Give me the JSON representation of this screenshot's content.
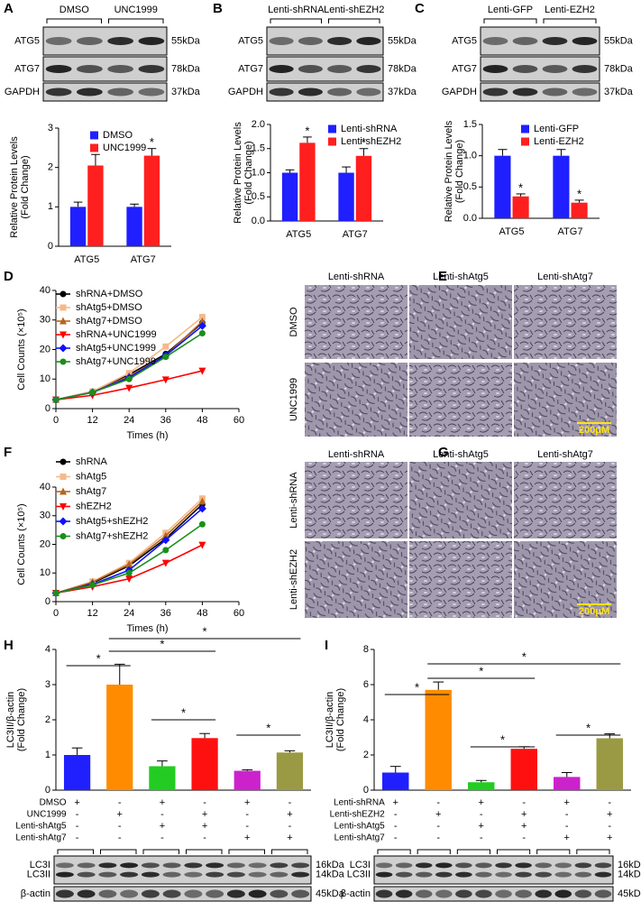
{
  "panel_labels": [
    "A",
    "B",
    "C",
    "D",
    "E",
    "F",
    "G",
    "H",
    "I"
  ],
  "blots": [
    {
      "header": [
        "DMSO",
        "UNC1999"
      ],
      "rows": [
        {
          "name": "ATG5",
          "size": "55kDa"
        },
        {
          "name": "ATG7",
          "size": "78kDa"
        },
        {
          "name": "GAPDH",
          "size": "37kDa"
        }
      ]
    },
    {
      "header": [
        "Lenti-shRNA",
        "Lenti-shEZH2"
      ],
      "rows": [
        {
          "name": "ATG5",
          "size": "55kDa"
        },
        {
          "name": "ATG7",
          "size": "78kDa"
        },
        {
          "name": "GAPDH",
          "size": "37kDa"
        }
      ]
    },
    {
      "header": [
        "Lenti-GFP",
        "Lenti-EZH2"
      ],
      "rows": [
        {
          "name": "ATG5",
          "size": "55kDa"
        },
        {
          "name": "ATG7",
          "size": "78kDa"
        },
        {
          "name": "GAPDH",
          "size": "37kDa"
        }
      ]
    },
    {
      "rows": [
        {
          "name": "LC3I",
          "size": "16kDa"
        },
        {
          "name": "LC3II",
          "size": "14kDa"
        },
        {
          "name": "β-actin",
          "size": "45kDa"
        }
      ]
    },
    {
      "rows": [
        {
          "name": "LC3I",
          "size": "16kDa"
        },
        {
          "name": "LC3II",
          "size": "14kDa"
        },
        {
          "name": "β-actin",
          "size": "45kDa"
        }
      ]
    }
  ],
  "micrographs": [
    {
      "columns": [
        "Lenti-shRNA",
        "Lenti-shAtg5",
        "Lenti-shAtg7"
      ],
      "rows": [
        "DMSO",
        "UNC1999"
      ],
      "scale": "200μM"
    },
    {
      "columns": [
        "Lenti-shRNA",
        "Lenti-shAtg5",
        "Lenti-shAtg7"
      ],
      "rows": [
        "Lenti-shRNA",
        "Lenti-shEZH2"
      ],
      "scale": "200μM"
    }
  ],
  "chart_data": [
    {
      "type": "bar",
      "ylabel": [
        "Relative Protein Levels",
        "(Fold Change)"
      ],
      "categories": [
        "ATG5",
        "ATG7"
      ],
      "series": [
        {
          "name": "DMSO",
          "color": "#1f1fff",
          "values": [
            1.0,
            1.0
          ],
          "errors": [
            0.12,
            0.07
          ]
        },
        {
          "name": "UNC1999",
          "color": "#ff1f1f",
          "values": [
            2.05,
            2.3
          ],
          "errors": [
            0.28,
            0.18
          ]
        }
      ],
      "annotations": [
        "*",
        "*"
      ],
      "ylim": [
        0,
        3
      ],
      "yticks": [
        0,
        1,
        2,
        3
      ]
    },
    {
      "type": "bar",
      "ylabel": [
        "Relative Protein Levels",
        "(Fold Change)"
      ],
      "categories": [
        "ATG5",
        "ATG7"
      ],
      "series": [
        {
          "name": "Lenti-shRNA",
          "color": "#1f1fff",
          "values": [
            1.0,
            1.0
          ],
          "errors": [
            0.06,
            0.12
          ]
        },
        {
          "name": "Lenti-shEZH2",
          "color": "#ff1f1f",
          "values": [
            1.62,
            1.35
          ],
          "errors": [
            0.12,
            0.15
          ]
        }
      ],
      "annotations": [
        "*",
        "*"
      ],
      "ylim": [
        0,
        2
      ],
      "yticks": [
        {
          "value": 0,
          "label": "0.0"
        },
        {
          "value": 0.5,
          "label": "0.5"
        },
        {
          "value": 1,
          "label": "1.0"
        },
        {
          "value": 1.5,
          "label": "1.5"
        },
        {
          "value": 2,
          "label": "2.0"
        }
      ]
    },
    {
      "type": "bar",
      "ylabel": [
        "Relative Protein Levels",
        "(Fold Change)"
      ],
      "categories": [
        "ATG5",
        "ATG7"
      ],
      "series": [
        {
          "name": "Lenti-GFP",
          "color": "#1f1fff",
          "values": [
            1.0,
            1.0
          ],
          "errors": [
            0.1,
            0.1
          ]
        },
        {
          "name": "Lenti-EZH2",
          "color": "#ff1f1f",
          "values": [
            0.35,
            0.25
          ],
          "errors": [
            0.04,
            0.04
          ]
        }
      ],
      "annotations": [
        "*",
        "*"
      ],
      "ylim": [
        0,
        1.5
      ],
      "yticks": [
        {
          "value": 0,
          "label": "0.0"
        },
        {
          "value": 0.5,
          "label": "0.5"
        },
        {
          "value": 1,
          "label": "1.0"
        },
        {
          "value": 1.5,
          "label": "1.5"
        }
      ]
    },
    {
      "type": "line",
      "ylabel": [
        "Cell Counts (×10⁵)"
      ],
      "xlabel": "Times (h)",
      "x": [
        0,
        12,
        24,
        36,
        48
      ],
      "xlim": [
        0,
        60
      ],
      "xticks": [
        0,
        12,
        24,
        36,
        48,
        60
      ],
      "ylim": [
        0,
        40
      ],
      "yticks": [
        0,
        10,
        20,
        30,
        40
      ],
      "series": [
        {
          "name": "shRNA+DMSO",
          "color": "#000000",
          "marker": "circle",
          "values": [
            3,
            5.8,
            11.5,
            18.5,
            29
          ]
        },
        {
          "name": "shAtg5+DMSO",
          "color": "#f5b98a",
          "marker": "square",
          "values": [
            3,
            5.8,
            12,
            21,
            31
          ]
        },
        {
          "name": "shAtg7+DMSO",
          "color": "#b5651d",
          "marker": "triangle-up",
          "values": [
            3,
            5.5,
            11,
            18,
            29.5
          ]
        },
        {
          "name": "shRNA+UNC1999",
          "color": "#ff0000",
          "marker": "triangle-down",
          "values": [
            3,
            4.5,
            7,
            9.8,
            12.8
          ]
        },
        {
          "name": "shAtg5+UNC1999",
          "color": "#1010ff",
          "marker": "diamond",
          "values": [
            3,
            5.5,
            10.5,
            18,
            28
          ]
        },
        {
          "name": "shAtg7+UNC1999",
          "color": "#1a8f1a",
          "marker": "circle",
          "values": [
            3,
            5.5,
            10,
            17.5,
            25.5
          ]
        }
      ]
    },
    {
      "type": "line",
      "ylabel": [
        "Cell Counts (×10⁵)"
      ],
      "xlabel": "Times (h)",
      "x": [
        0,
        12,
        24,
        36,
        48
      ],
      "xlim": [
        0,
        60
      ],
      "xticks": [
        0,
        12,
        24,
        36,
        48,
        60
      ],
      "ylim": [
        0,
        40
      ],
      "yticks": [
        0,
        10,
        20,
        30,
        40
      ],
      "series": [
        {
          "name": "shRNA",
          "color": "#000000",
          "marker": "circle",
          "values": [
            3,
            6.5,
            12.5,
            22,
            34
          ]
        },
        {
          "name": "shAtg5",
          "color": "#f5b98a",
          "marker": "square",
          "values": [
            3,
            7,
            13.5,
            24,
            36
          ]
        },
        {
          "name": "shAtg7",
          "color": "#b5651d",
          "marker": "triangle-up",
          "values": [
            3,
            6.8,
            13,
            23,
            35
          ]
        },
        {
          "name": "shEZH2",
          "color": "#ff0000",
          "marker": "triangle-down",
          "values": [
            3,
            5.2,
            8,
            13.5,
            19.8
          ]
        },
        {
          "name": "shAtg5+shEZH2",
          "color": "#1010ff",
          "marker": "diamond",
          "values": [
            3,
            6,
            11,
            21.5,
            32.5
          ]
        },
        {
          "name": "shAtg7+shEZH2",
          "color": "#1a8f1a",
          "marker": "circle",
          "values": [
            3,
            5.8,
            10,
            18,
            27
          ]
        }
      ]
    },
    {
      "type": "bar",
      "ylabel": [
        "LC3II/β-actin",
        "(Fold Change)"
      ],
      "categories": [
        null,
        null,
        null,
        null,
        null,
        null
      ],
      "values": [
        1.0,
        3.0,
        0.68,
        1.48,
        0.55,
        1.07
      ],
      "errors": [
        0.2,
        0.58,
        0.15,
        0.13,
        0.03,
        0.05
      ],
      "colors": [
        "#2020ff",
        "#ff8c00",
        "#22cc22",
        "#ff1010",
        "#cc22cc",
        "#9a9a44"
      ],
      "comparisons": [
        "*",
        "*",
        "*",
        "*",
        "*"
      ],
      "ylim": [
        0,
        4
      ],
      "yticks": [
        0,
        1,
        2,
        3,
        4
      ],
      "conditions": [
        {
          "name": "DMSO",
          "signs": [
            "+",
            "-",
            "+",
            "-",
            "+",
            "-"
          ]
        },
        {
          "name": "UNC1999",
          "signs": [
            "-",
            "+",
            "-",
            "+",
            "-",
            "+"
          ]
        },
        {
          "name": "Lenti-shAtg5",
          "signs": [
            "-",
            "-",
            "+",
            "+",
            "-",
            "-"
          ]
        },
        {
          "name": "Lenti-shAtg7",
          "signs": [
            "-",
            "-",
            "-",
            "-",
            "+",
            "+"
          ]
        }
      ]
    },
    {
      "type": "bar",
      "ylabel": [
        "LC3II/β-actin",
        "(Fold Change)"
      ],
      "categories": [
        null,
        null,
        null,
        null,
        null,
        null
      ],
      "values": [
        1.0,
        5.7,
        0.45,
        2.35,
        0.75,
        2.95
      ],
      "errors": [
        0.35,
        0.45,
        0.1,
        0.12,
        0.25,
        0.25
      ],
      "colors": [
        "#2020ff",
        "#ff8c00",
        "#22cc22",
        "#ff1010",
        "#cc22cc",
        "#9a9a44"
      ],
      "comparisons": [
        "*",
        "*",
        "*",
        "*",
        "*"
      ],
      "ylim": [
        0,
        8
      ],
      "yticks": [
        0,
        2,
        4,
        6,
        8
      ],
      "conditions": [
        {
          "name": "Lenti-shRNA",
          "signs": [
            "+",
            "-",
            "+",
            "-",
            "+",
            "-"
          ]
        },
        {
          "name": "Lenti-shEZH2",
          "signs": [
            "-",
            "+",
            "-",
            "+",
            "-",
            "+"
          ]
        },
        {
          "name": "Lenti-shAtg5",
          "signs": [
            "-",
            "-",
            "+",
            "+",
            "-",
            "-"
          ]
        },
        {
          "name": "Lenti-shAtg7",
          "signs": [
            "-",
            "-",
            "-",
            "-",
            "+",
            "+"
          ]
        }
      ]
    }
  ]
}
